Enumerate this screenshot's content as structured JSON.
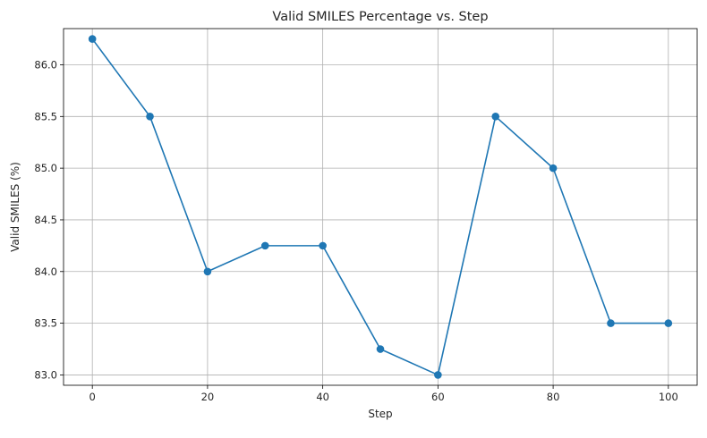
{
  "chart_data": {
    "type": "line",
    "title": "Valid SMILES Percentage vs. Step",
    "xlabel": "Step",
    "ylabel": "Valid SMILES (%)",
    "x": [
      0,
      10,
      20,
      30,
      40,
      50,
      60,
      70,
      80,
      90,
      100
    ],
    "series": [
      {
        "values": [
          86.25,
          85.5,
          84.0,
          84.25,
          84.25,
          83.25,
          83.0,
          85.5,
          85.0,
          83.5,
          83.5
        ],
        "color": "#1f77b4",
        "marker": "circle"
      }
    ],
    "xlim": [
      -5,
      105
    ],
    "ylim": [
      82.9,
      86.35
    ],
    "xticks": [
      "0",
      "20",
      "40",
      "60",
      "80",
      "100"
    ],
    "xtick_values": [
      0,
      20,
      40,
      60,
      80,
      100
    ],
    "yticks": [
      "83.0",
      "83.5",
      "84.0",
      "84.5",
      "85.0",
      "85.5",
      "86.0"
    ],
    "ytick_values": [
      83.0,
      83.5,
      84.0,
      84.5,
      85.0,
      85.5,
      86.0
    ],
    "grid": true,
    "grid_color": "#b0b0b0"
  }
}
